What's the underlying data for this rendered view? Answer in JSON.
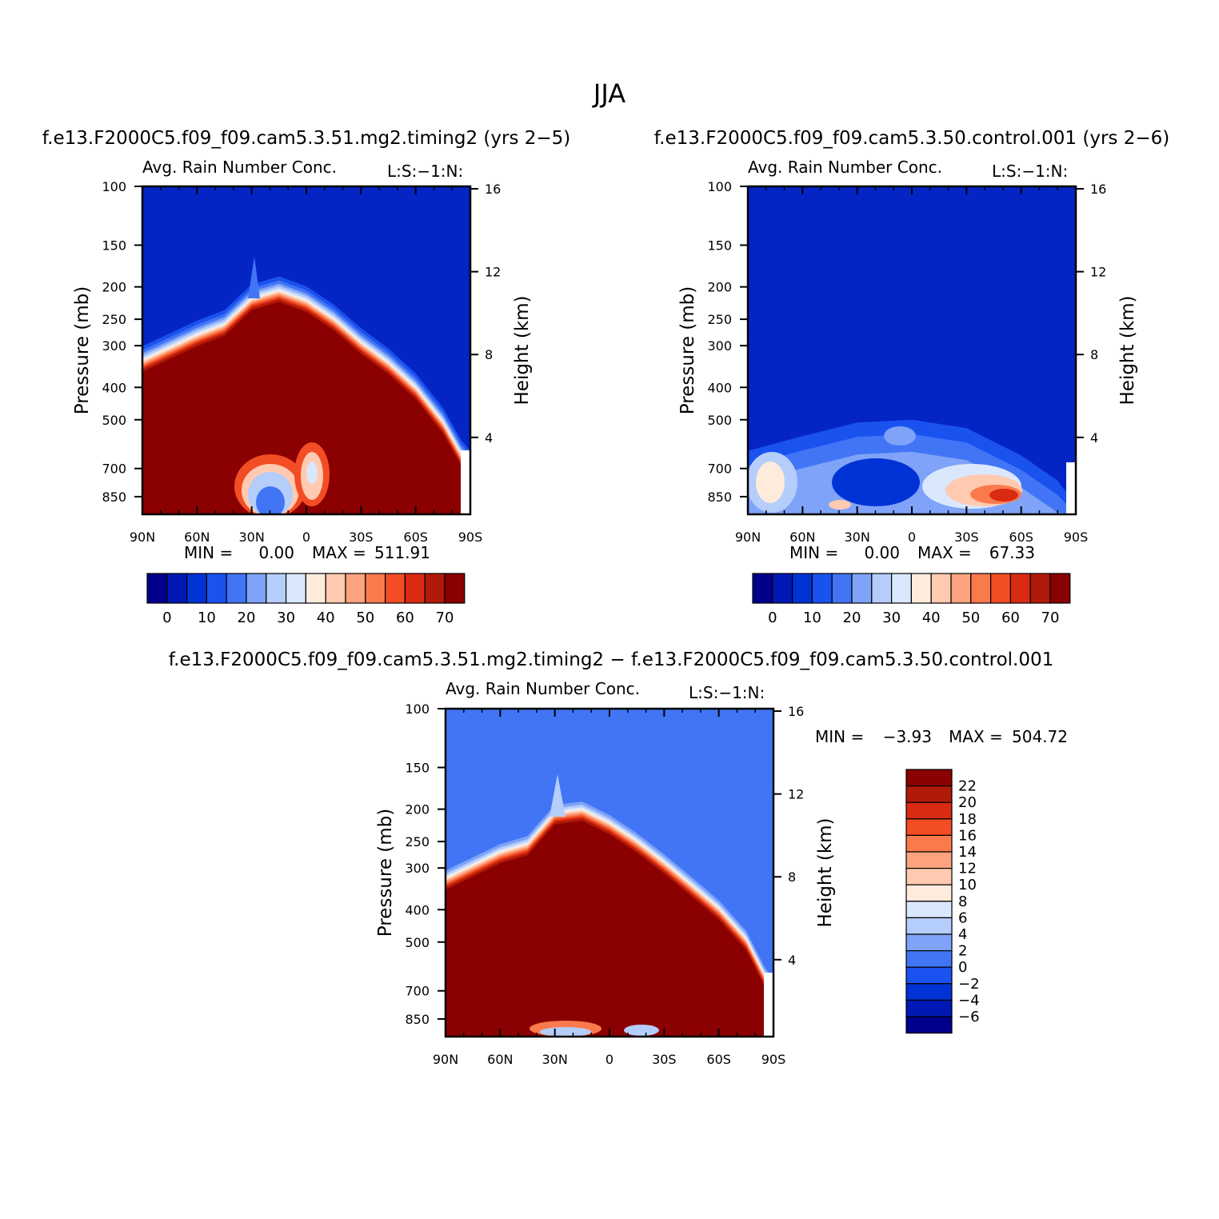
{
  "figure": {
    "season": "JJA"
  },
  "chart_data": [
    {
      "type": "heatmap",
      "panel": "case",
      "case_title": "f.e13.F2000C5.f09_f09.cam5.3.51.mg2.timing2 (yrs 2−5)",
      "variable_label": "Avg. Rain Number Conc.",
      "corner_label": "L:S:−1:N:",
      "ylabel": "Pressure (mb)",
      "y2label": "Height (km)",
      "x_ticks": [
        "90N",
        "60N",
        "30N",
        "0",
        "30S",
        "60S",
        "90S"
      ],
      "p_ticks": [
        "100",
        "150",
        "200",
        "250",
        "300",
        "400",
        "500",
        "700",
        "850"
      ],
      "p_values": [
        100,
        150,
        200,
        250,
        300,
        400,
        500,
        700,
        850
      ],
      "h_ticks": [
        "16",
        "12",
        "8",
        "4"
      ],
      "min_label": "MIN =",
      "min_value": "0.00",
      "max_label": "MAX =",
      "max_value": "511.91",
      "colorbar_labels": [
        "0",
        "10",
        "20",
        "30",
        "40",
        "50",
        "60",
        "70"
      ],
      "colorbar_colors": [
        "#00008c",
        "#0019b4",
        "#0033d6",
        "#1a52f0",
        "#4175f5",
        "#7fa3f8",
        "#b4cdfb",
        "#d9e8fd",
        "#ffebdc",
        "#ffcab0",
        "#fda37f",
        "#fb7a4d",
        "#f24d24",
        "#d82b12",
        "#b01a08",
        "#8b0000"
      ],
      "cloud_top_pressure": [
        [
          90,
          340
        ],
        [
          60,
          285
        ],
        [
          45,
          265
        ],
        [
          30,
          222
        ],
        [
          15,
          210
        ],
        [
          0,
          225
        ],
        [
          -15,
          255
        ],
        [
          -30,
          300
        ],
        [
          -45,
          345
        ],
        [
          -60,
          410
        ],
        [
          -75,
          520
        ],
        [
          -85,
          650
        ],
        [
          -90,
          700
        ]
      ]
    },
    {
      "type": "heatmap",
      "panel": "control",
      "case_title": "f.e13.F2000C5.f09_f09.cam5.3.50.control.001 (yrs 2−6)",
      "variable_label": "Avg. Rain Number Conc.",
      "corner_label": "L:S:−1:N:",
      "ylabel": "Pressure (mb)",
      "y2label": "Height (km)",
      "x_ticks": [
        "90N",
        "60N",
        "30N",
        "0",
        "30S",
        "60S",
        "90S"
      ],
      "p_ticks": [
        "100",
        "150",
        "200",
        "250",
        "300",
        "400",
        "500",
        "700",
        "850"
      ],
      "p_values": [
        100,
        150,
        200,
        250,
        300,
        400,
        500,
        700,
        850
      ],
      "h_ticks": [
        "16",
        "12",
        "8",
        "4"
      ],
      "min_label": "MIN =",
      "min_value": "0.00",
      "max_label": "MAX =",
      "max_value": "67.33",
      "colorbar_labels": [
        "0",
        "10",
        "20",
        "30",
        "40",
        "50",
        "60",
        "70"
      ],
      "colorbar_colors": [
        "#00008c",
        "#0019b4",
        "#0033d6",
        "#1a52f0",
        "#4175f5",
        "#7fa3f8",
        "#b4cdfb",
        "#d9e8fd",
        "#ffebdc",
        "#ffcab0",
        "#fda37f",
        "#fb7a4d",
        "#f24d24",
        "#d82b12",
        "#b01a08",
        "#8b0000"
      ],
      "rain_top_pressure": [
        [
          90,
          620
        ],
        [
          60,
          560
        ],
        [
          30,
          510
        ],
        [
          0,
          500
        ],
        [
          -30,
          530
        ],
        [
          -60,
          640
        ],
        [
          -80,
          760
        ],
        [
          -90,
          900
        ]
      ]
    },
    {
      "type": "heatmap",
      "panel": "difference",
      "case_title": "f.e13.F2000C5.f09_f09.cam5.3.51.mg2.timing2 − f.e13.F2000C5.f09_f09.cam5.3.50.control.001",
      "variable_label": "Avg. Rain Number Conc.",
      "corner_label": "L:S:−1:N:",
      "ylabel": "Pressure (mb)",
      "y2label": "Height (km)",
      "x_ticks": [
        "90N",
        "60N",
        "30N",
        "0",
        "30S",
        "60S",
        "90S"
      ],
      "p_ticks": [
        "100",
        "150",
        "200",
        "250",
        "300",
        "400",
        "500",
        "700",
        "850"
      ],
      "p_values": [
        100,
        150,
        200,
        250,
        300,
        400,
        500,
        700,
        850
      ],
      "h_ticks": [
        "16",
        "12",
        "8",
        "4"
      ],
      "min_label": "MIN =",
      "min_value": "−3.93",
      "max_label": "MAX =",
      "max_value": "504.72",
      "colorbar_labels": [
        "22",
        "20",
        "18",
        "16",
        "14",
        "12",
        "10",
        "8",
        "6",
        "4",
        "2",
        "0",
        "−2",
        "−4",
        "−6"
      ],
      "colorbar_colors": [
        "#8b0000",
        "#b01a08",
        "#d82b12",
        "#f24d24",
        "#fb7a4d",
        "#fda37f",
        "#ffcab0",
        "#ffebdc",
        "#d9e8fd",
        "#b4cdfb",
        "#7fa3f8",
        "#4175f5",
        "#1a52f0",
        "#0033d6",
        "#0019b4",
        "#00008c"
      ],
      "cloud_top_pressure": [
        [
          90,
          330
        ],
        [
          60,
          275
        ],
        [
          45,
          260
        ],
        [
          30,
          210
        ],
        [
          15,
          205
        ],
        [
          0,
          225
        ],
        [
          -15,
          255
        ],
        [
          -30,
          295
        ],
        [
          -45,
          345
        ],
        [
          -60,
          405
        ],
        [
          -75,
          500
        ],
        [
          -85,
          640
        ],
        [
          -90,
          700
        ]
      ]
    }
  ]
}
